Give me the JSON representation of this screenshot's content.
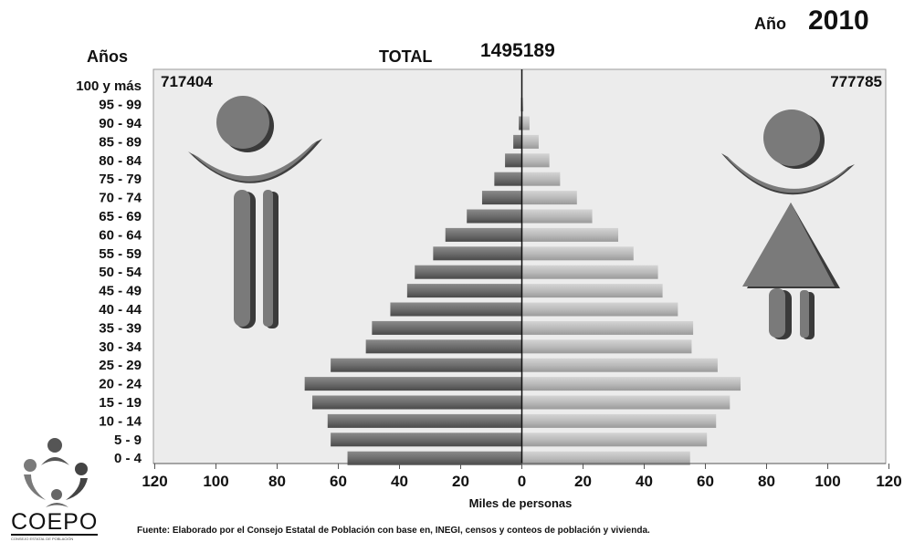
{
  "header": {
    "year_label": "Año",
    "year_value": "2010",
    "age_axis_title": "Años",
    "total_label": "TOTAL",
    "total_value": "1495189",
    "men_total": "717404",
    "women_total": "777785"
  },
  "footer": {
    "source": "Fuente: Elaborado por el Consejo Estatal de Población con base en, INEGI, censos y conteos de población y vivienda.",
    "logo_text": "COEPO",
    "logo_subtext": "CONSEJO ESTATAL DE POBLACIÓN"
  },
  "icons": {
    "male": "male-person-icon",
    "female": "female-person-icon",
    "logo": "coepo-logo-icon"
  },
  "colors": {
    "men_bar": "#6e6e6e",
    "women_bar": "#bdbdbd",
    "plot_background": "#ececec"
  },
  "chart_data": {
    "type": "bar",
    "orientation": "horizontal",
    "layout": "population-pyramid",
    "categories": [
      "100 y más",
      "95 - 99",
      "90 - 94",
      "85 - 89",
      "80 - 84",
      "75 - 79",
      "70 - 74",
      "65 - 69",
      "60 - 64",
      "55 - 59",
      "50 - 54",
      "45 - 49",
      "40 - 44",
      "35 - 39",
      "30 - 34",
      "25 - 29",
      "20 - 24",
      "15 - 19",
      "10 - 14",
      "5 - 9",
      "0 - 4"
    ],
    "series": [
      {
        "values": [
          0.1,
          0.3,
          1.0,
          2.8,
          5.5,
          9.0,
          13.0,
          18.0,
          25.0,
          29.0,
          35.0,
          37.5,
          43.0,
          49.0,
          51.0,
          62.5,
          71.0,
          68.5,
          63.5,
          62.5,
          57.0
        ]
      },
      {
        "values": [
          0.1,
          0.5,
          2.5,
          5.5,
          9.0,
          12.5,
          18.0,
          23.0,
          31.5,
          36.5,
          44.5,
          46.0,
          51.0,
          56.0,
          55.5,
          64.0,
          71.5,
          68.0,
          63.5,
          60.5,
          55.0
        ]
      }
    ],
    "xlabel": "Miles de personas",
    "xlim": [
      -120,
      120
    ],
    "xticks": [
      -120,
      -100,
      -80,
      -60,
      -40,
      -20,
      0,
      20,
      40,
      60,
      80,
      100,
      120
    ],
    "xtick_labels": [
      "120",
      "100",
      "80",
      "60",
      "40",
      "20",
      "0",
      "20",
      "40",
      "60",
      "80",
      "100",
      "120"
    ],
    "grid": false
  }
}
